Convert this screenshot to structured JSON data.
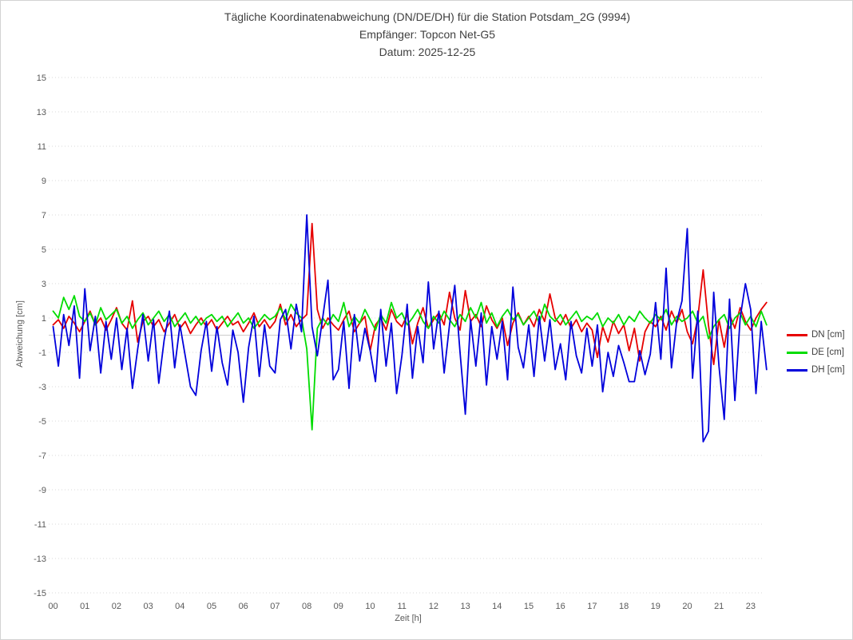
{
  "header": {
    "title": "Tägliche Koordinatenabweichung (DN/DE/DH) für die Station Potsdam_2G (9994)",
    "receiver": "Empfänger: Topcon Net-G5",
    "date": "Datum: 2025-12-25"
  },
  "chart_data": {
    "type": "line",
    "title": "Tägliche Koordinatenabweichung (DN/DE/DH) für die Station Potsdam_2G (9994)",
    "subtitle_receiver": "Empfänger: Topcon Net-G5",
    "subtitle_date": "Datum: 2025-12-25",
    "xlabel": "Zeit [h]",
    "ylabel": "Abweichung [cm]",
    "ylim": [
      -15,
      15
    ],
    "y_ticks": [
      -15,
      -13,
      -11,
      -9,
      -7,
      -5,
      -3,
      -1,
      1,
      3,
      5,
      7,
      9,
      11,
      13,
      15
    ],
    "x_tick_labels": [
      "00",
      "01",
      "02",
      "03",
      "04",
      "05",
      "06",
      "07",
      "08",
      "09",
      "10",
      "11",
      "12",
      "13",
      "14",
      "15",
      "16",
      "17",
      "18",
      "19",
      "20",
      "21",
      "23"
    ],
    "x_axis_note": "category axis in hourly slots; hour 22 absent, so label 23 follows 21",
    "grid": "dotted horizontal gridlines at odd values, solid light line at 0, no axis frame",
    "legend_position": "right",
    "sampling": "10-minute interval, 00:00-23:30, hour 22 missing (136 points per series)",
    "zero_line_color": "#cccccc",
    "grid_color": "#d9d9d9",
    "tick_text_color": "#595959",
    "series": [
      {
        "name": "DN [cm]",
        "color": "#e60000",
        "values": [
          0.6,
          0.9,
          0.4,
          1.1,
          0.7,
          0.2,
          0.8,
          1.4,
          0.6,
          1.0,
          0.3,
          0.9,
          1.6,
          0.7,
          0.3,
          2.0,
          -0.4,
          0.8,
          1.1,
          0.5,
          0.9,
          0.2,
          0.7,
          1.2,
          0.4,
          0.8,
          0.1,
          0.6,
          1.0,
          0.5,
          0.9,
          0.3,
          0.7,
          1.1,
          0.6,
          0.8,
          0.2,
          0.7,
          1.3,
          0.5,
          0.9,
          0.4,
          0.8,
          1.8,
          0.6,
          1.2,
          0.5,
          0.9,
          1.2,
          6.5,
          1.5,
          0.4,
          1.0,
          0.6,
          0.3,
          0.9,
          1.4,
          0.2,
          0.7,
          1.1,
          -0.9,
          0.6,
          1.0,
          0.3,
          1.5,
          0.8,
          0.5,
          1.2,
          -0.5,
          0.7,
          1.6,
          0.4,
          0.9,
          1.3,
          0.6,
          2.5,
          1.0,
          0.3,
          2.6,
          0.8,
          1.2,
          0.5,
          1.7,
          0.9,
          0.4,
          1.0,
          -0.6,
          0.7,
          1.3,
          0.6,
          1.1,
          0.5,
          1.5,
          0.8,
          2.4,
          1.0,
          0.6,
          1.2,
          0.4,
          0.9,
          0.2,
          0.7,
          0.3,
          -1.3,
          0.5,
          -0.4,
          0.8,
          0.1,
          0.6,
          -0.9,
          0.4,
          -1.5,
          0.2,
          0.8,
          0.5,
          1.1,
          0.3,
          1.4,
          0.7,
          1.5,
          0.2,
          -0.5,
          1.0,
          3.8,
          0.6,
          -1.7,
          0.9,
          -0.7,
          1.2,
          0.4,
          1.6,
          0.8,
          0.3,
          1.0,
          1.5,
          1.9
        ]
      },
      {
        "name": "DE [cm]",
        "color": "#00dc00",
        "values": [
          1.4,
          1.0,
          2.2,
          1.5,
          2.3,
          1.1,
          0.8,
          1.3,
          0.6,
          1.6,
          0.9,
          1.2,
          1.5,
          0.7,
          1.1,
          0.4,
          0.9,
          1.3,
          0.6,
          1.0,
          1.4,
          0.8,
          1.2,
          0.5,
          0.9,
          1.3,
          0.7,
          1.1,
          0.6,
          1.0,
          1.2,
          0.8,
          1.1,
          0.5,
          0.9,
          1.3,
          0.7,
          1.0,
          0.4,
          0.8,
          1.2,
          0.9,
          1.1,
          1.6,
          0.9,
          1.8,
          1.3,
          1.0,
          -0.8,
          -5.5,
          0.4,
          1.0,
          0.6,
          1.2,
          0.8,
          1.9,
          0.5,
          1.1,
          0.7,
          1.5,
          0.9,
          0.3,
          1.2,
          0.7,
          1.9,
          1.0,
          1.3,
          0.6,
          1.0,
          1.5,
          0.8,
          0.4,
          1.1,
          0.7,
          1.4,
          0.9,
          0.5,
          1.2,
          0.8,
          1.6,
          1.0,
          1.9,
          0.7,
          1.3,
          0.5,
          1.1,
          1.5,
          0.9,
          1.2,
          0.6,
          1.0,
          1.4,
          0.7,
          1.8,
          1.1,
          0.8,
          1.2,
          0.6,
          1.0,
          1.4,
          0.8,
          1.1,
          0.9,
          1.3,
          0.5,
          1.0,
          0.7,
          1.2,
          0.6,
          1.1,
          0.8,
          1.4,
          1.0,
          0.7,
          1.2,
          0.9,
          1.5,
          0.6,
          1.1,
          0.8,
          1.0,
          1.4,
          0.7,
          1.1,
          -0.2,
          0.5,
          0.9,
          1.2,
          0.4,
          1.0,
          1.3,
          0.6,
          1.1,
          0.5,
          1.4,
          0.6
        ]
      },
      {
        "name": "DH [cm]",
        "color": "#0000dc",
        "values": [
          0.5,
          -1.8,
          1.2,
          -0.6,
          1.7,
          -2.5,
          2.7,
          -0.9,
          1.1,
          -2.2,
          0.8,
          -1.4,
          1.0,
          -2.0,
          0.4,
          -3.1,
          -0.8,
          1.2,
          -1.5,
          0.9,
          -2.8,
          -0.3,
          1.4,
          -1.9,
          0.6,
          -1.2,
          -3.0,
          -3.5,
          -0.9,
          0.8,
          -2.1,
          0.5,
          -1.6,
          -2.9,
          0.3,
          -1.0,
          -3.9,
          -0.7,
          1.1,
          -2.4,
          0.6,
          -1.8,
          -2.2,
          0.9,
          1.5,
          -0.8,
          1.8,
          0.2,
          7.0,
          0.5,
          -1.2,
          1.0,
          3.2,
          -2.6,
          -2.0,
          0.8,
          -3.1,
          1.2,
          -1.5,
          0.4,
          -0.9,
          -2.7,
          1.5,
          -1.8,
          0.7,
          -3.4,
          -1.2,
          1.8,
          -2.5,
          0.5,
          -1.6,
          3.1,
          -0.8,
          1.4,
          -2.2,
          0.6,
          2.9,
          -1.0,
          -4.6,
          0.9,
          -1.8,
          1.3,
          -2.9,
          0.5,
          -1.4,
          0.8,
          -2.6,
          2.8,
          -0.7,
          -1.9,
          0.6,
          -2.4,
          1.1,
          -1.5,
          0.9,
          -2.0,
          -0.5,
          -2.6,
          0.8,
          -1.2,
          -2.2,
          0.4,
          -1.8,
          0.6,
          -3.3,
          -1.0,
          -2.4,
          -0.6,
          -1.6,
          -2.7,
          -2.7,
          -0.9,
          -2.3,
          -1.1,
          1.9,
          -1.4,
          3.9,
          -1.9,
          0.8,
          2.0,
          6.2,
          -2.5,
          1.4,
          -6.2,
          -5.6,
          2.5,
          -1.8,
          -4.9,
          2.1,
          -3.8,
          1.0,
          3.0,
          1.5,
          -3.4,
          0.8,
          -2.0
        ]
      }
    ]
  }
}
